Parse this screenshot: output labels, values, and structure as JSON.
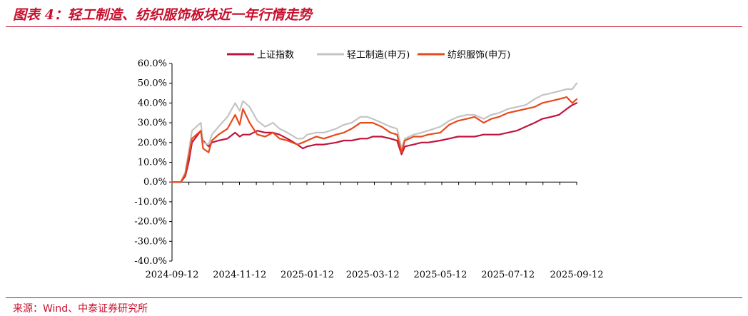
{
  "header": {
    "title": "图表 4：轻工制造、纺织服饰板块近一年行情走势"
  },
  "footer": {
    "source": "来源：Wind、中泰证券研究所"
  },
  "colors": {
    "accent": "#c8102e"
  },
  "chart_data": {
    "type": "line",
    "title": "",
    "xlabel": "",
    "ylabel": "",
    "ylim": [
      -40,
      60
    ],
    "yticks": [
      "60.0%",
      "50.0%",
      "40.0%",
      "30.0%",
      "20.0%",
      "10.0%",
      "0.0%",
      "-10.0%",
      "-20.0%",
      "-30.0%",
      "-40.0%"
    ],
    "xticks": [
      "2024-09-12",
      "2024-11-12",
      "2025-01-12",
      "2025-03-12",
      "2025-05-12",
      "2025-07-12",
      "2025-09-12"
    ],
    "grid": false,
    "legend_position": "top",
    "x": [
      "2024-09-12",
      "2024-09-20",
      "2024-09-24",
      "2024-09-27",
      "2024-09-30",
      "2024-10-08",
      "2024-10-10",
      "2024-10-15",
      "2024-10-18",
      "2024-10-24",
      "2024-11-01",
      "2024-11-08",
      "2024-11-12",
      "2024-11-15",
      "2024-11-21",
      "2024-11-28",
      "2024-12-05",
      "2024-12-12",
      "2024-12-18",
      "2024-12-25",
      "2025-01-03",
      "2025-01-08",
      "2025-01-12",
      "2025-01-20",
      "2025-01-27",
      "2025-02-07",
      "2025-02-14",
      "2025-02-21",
      "2025-03-01",
      "2025-03-07",
      "2025-03-12",
      "2025-03-20",
      "2025-03-28",
      "2025-04-03",
      "2025-04-07",
      "2025-04-10",
      "2025-04-18",
      "2025-04-25",
      "2025-05-01",
      "2025-05-12",
      "2025-05-20",
      "2025-05-28",
      "2025-06-05",
      "2025-06-12",
      "2025-06-20",
      "2025-06-27",
      "2025-07-04",
      "2025-07-12",
      "2025-07-20",
      "2025-07-28",
      "2025-08-05",
      "2025-08-12",
      "2025-08-20",
      "2025-08-27",
      "2025-09-03",
      "2025-09-08",
      "2025-09-12"
    ],
    "series": [
      {
        "name": "上证指数",
        "color": "#c0143c",
        "values": [
          0,
          0,
          3,
          10,
          20,
          26,
          21,
          18,
          20,
          21,
          22,
          25,
          23,
          24,
          24,
          26,
          25,
          25,
          24,
          22,
          19,
          17,
          18,
          19,
          19,
          20,
          21,
          21,
          22,
          22,
          23,
          23,
          22,
          21,
          14,
          18,
          19,
          20,
          20,
          21,
          22,
          23,
          23,
          23,
          24,
          24,
          24,
          25,
          26,
          28,
          30,
          32,
          33,
          34,
          37,
          39,
          40
        ]
      },
      {
        "name": "轻工制造(申万)",
        "color": "#c4c4c4",
        "values": [
          0,
          0,
          5,
          15,
          26,
          30,
          20,
          19,
          24,
          28,
          33,
          40,
          36,
          41,
          38,
          31,
          28,
          30,
          27,
          25,
          22,
          22,
          24,
          25,
          25,
          27,
          29,
          30,
          33,
          33,
          32,
          30,
          28,
          27,
          17,
          22,
          24,
          25,
          26,
          28,
          31,
          33,
          34,
          34,
          32,
          34,
          35,
          37,
          38,
          39,
          42,
          44,
          45,
          46,
          47,
          47,
          50
        ]
      },
      {
        "name": "纺织服饰(申万)",
        "color": "#e8491a",
        "values": [
          0,
          0,
          4,
          13,
          22,
          26,
          17,
          15,
          21,
          24,
          27,
          34,
          29,
          37,
          30,
          24,
          23,
          25,
          22,
          21,
          19,
          20,
          21,
          23,
          22,
          24,
          25,
          27,
          30,
          30,
          30,
          28,
          25,
          24,
          15,
          21,
          23,
          23,
          24,
          25,
          29,
          31,
          32,
          33,
          30,
          32,
          33,
          35,
          36,
          37,
          38,
          40,
          41,
          42,
          43,
          40,
          42
        ]
      }
    ]
  }
}
